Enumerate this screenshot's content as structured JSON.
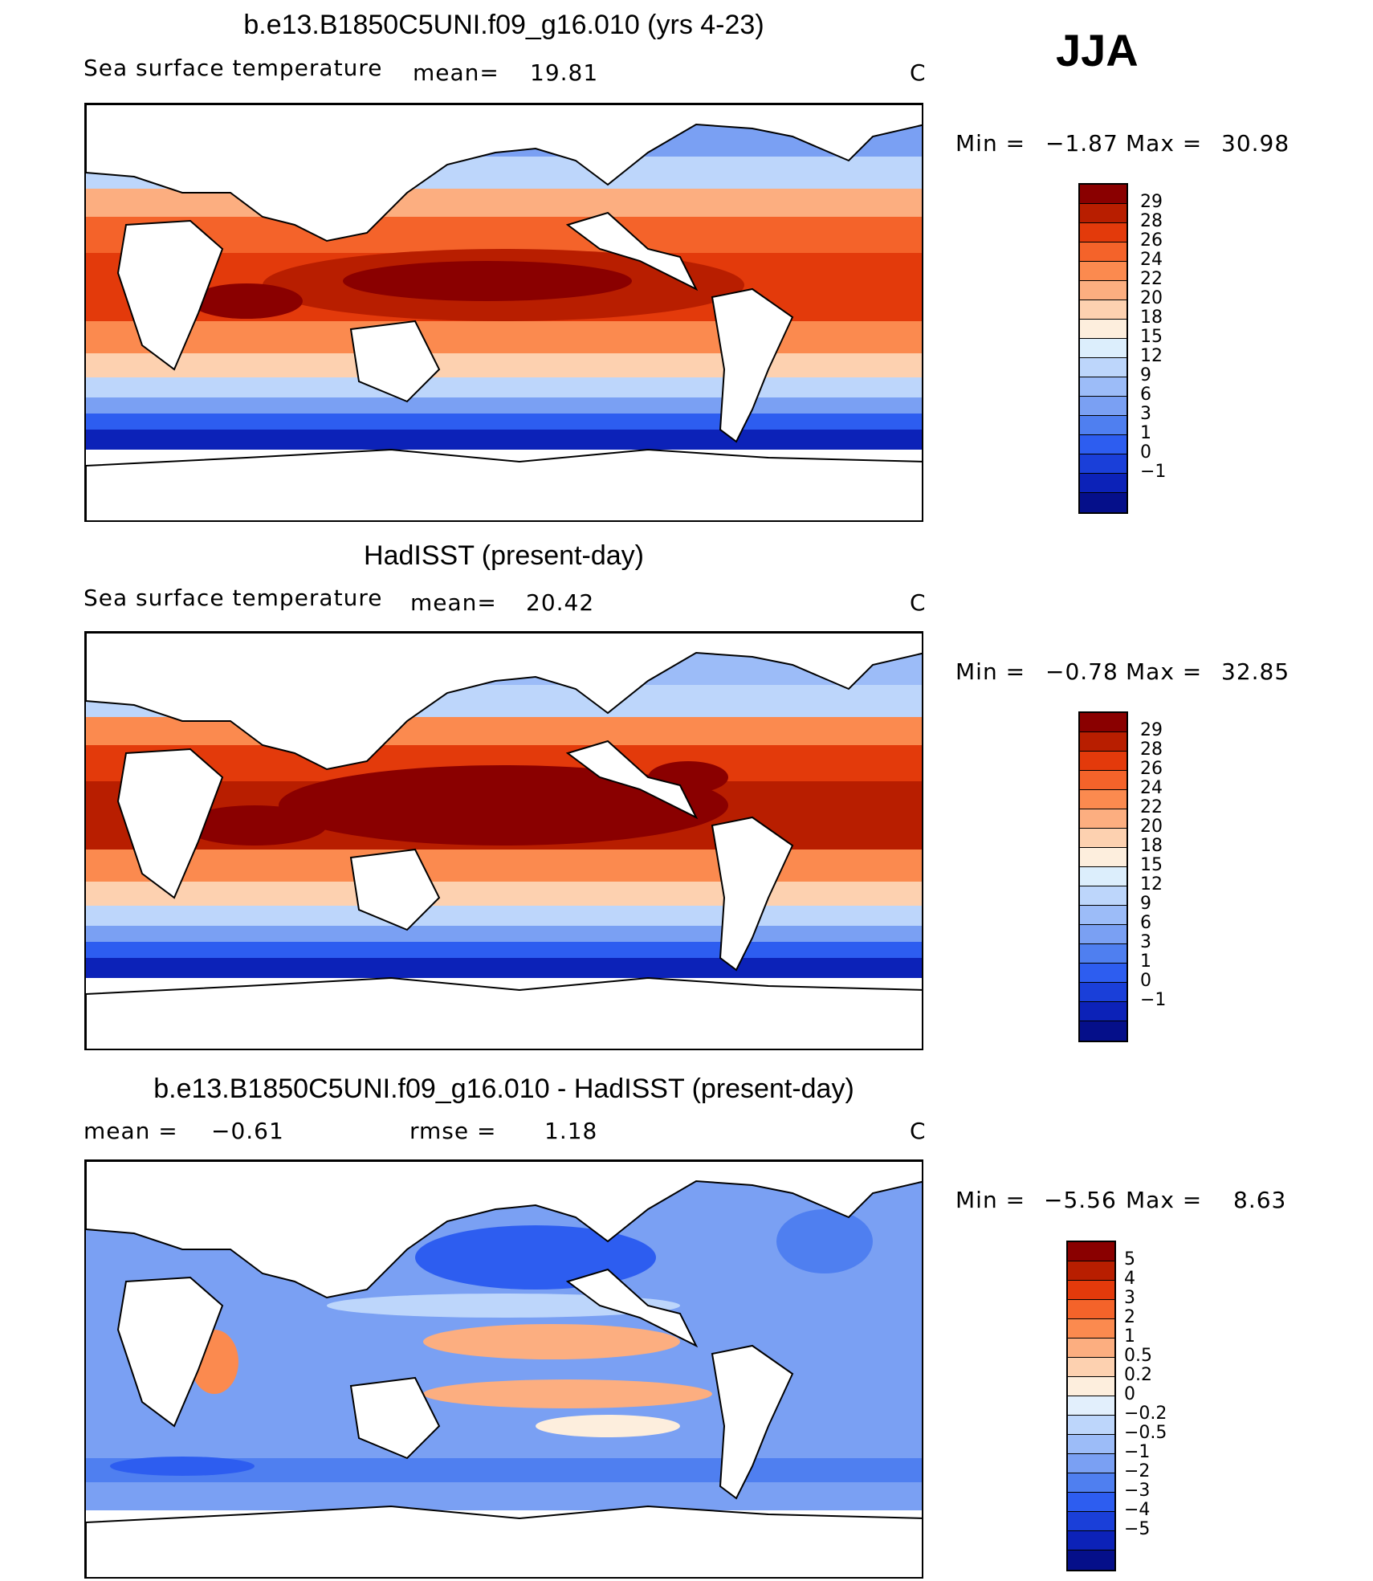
{
  "season": "JJA",
  "panels": [
    {
      "title": "b.e13.B1850C5UNI.f09_g16.010 (yrs 4-23)",
      "left_label": "Sea surface temperature",
      "stat_label": "mean=",
      "stat_value": "19.81",
      "units": "C",
      "min_label": "Min =",
      "min_value": "−1.87",
      "max_label": "Max =",
      "max_value": "30.98",
      "colorbar": {
        "colors": [
          "#8a0000",
          "#b81e00",
          "#e33a0b",
          "#f4632a",
          "#fb8a4f",
          "#fcae80",
          "#fdd1b0",
          "#fdeedd",
          "#dceefc",
          "#bdd6fb",
          "#9cbcf8",
          "#7aa0f3",
          "#4f7ff0",
          "#2d5df0",
          "#1a3fd9",
          "#0c22b8",
          "#050f8a"
        ],
        "ticks": [
          "29",
          "28",
          "26",
          "24",
          "22",
          "20",
          "18",
          "15",
          "12",
          "9",
          "6",
          "3",
          "1",
          "0",
          "−1"
        ]
      }
    },
    {
      "title": "HadISST (present-day)",
      "left_label": "Sea surface temperature",
      "stat_label": "mean=",
      "stat_value": "20.42",
      "units": "C",
      "min_label": "Min =",
      "min_value": "−0.78",
      "max_label": "Max =",
      "max_value": "32.85",
      "colorbar": {
        "colors": [
          "#8a0000",
          "#b81e00",
          "#e33a0b",
          "#f4632a",
          "#fb8a4f",
          "#fcae80",
          "#fdd1b0",
          "#fdeedd",
          "#dceefc",
          "#bdd6fb",
          "#9cbcf8",
          "#7aa0f3",
          "#4f7ff0",
          "#2d5df0",
          "#1a3fd9",
          "#0c22b8",
          "#050f8a"
        ],
        "ticks": [
          "29",
          "28",
          "26",
          "24",
          "22",
          "20",
          "18",
          "15",
          "12",
          "9",
          "6",
          "3",
          "1",
          "0",
          "−1"
        ]
      }
    },
    {
      "title": "b.e13.B1850C5UNI.f09_g16.010 - HadISST (present-day)",
      "left_label": "mean =",
      "left_value": "−0.61",
      "stat_label": "rmse =",
      "stat_value": "1.18",
      "units": "C",
      "min_label": "Min =",
      "min_value": "−5.56",
      "max_label": "Max =",
      "max_value": "8.63",
      "colorbar": {
        "colors": [
          "#8a0000",
          "#b81e00",
          "#e33a0b",
          "#f4632a",
          "#fb8a4f",
          "#fcae80",
          "#fdd1b0",
          "#fdeedd",
          "#e2effc",
          "#bdd6fb",
          "#9cbcf8",
          "#7aa0f3",
          "#4f7ff0",
          "#2d5df0",
          "#1a3fd9",
          "#0c22b8",
          "#050f8a"
        ],
        "ticks": [
          "5",
          "4",
          "3",
          "2",
          "1",
          "0.5",
          "0.2",
          "0",
          "−0.2",
          "−0.5",
          "−1",
          "−2",
          "−3",
          "−4",
          "−5"
        ]
      }
    }
  ]
}
